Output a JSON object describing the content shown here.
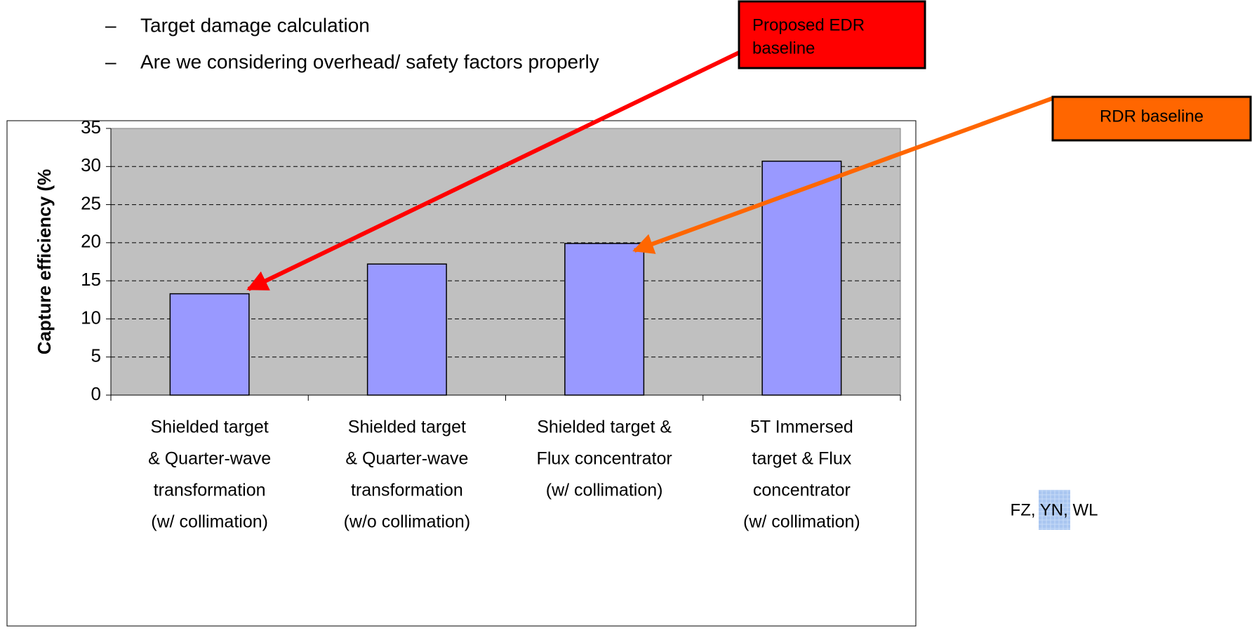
{
  "bullets": [
    "Target damage calculation",
    "Are we considering overhead/ safety factors properly"
  ],
  "chart_data": {
    "type": "bar",
    "ylabel": "Capture efficiency (%",
    "categories": [
      [
        "Shielded target",
        "& Quarter-wave",
        "transformation",
        "(w/ collimation)"
      ],
      [
        "Shielded target",
        "& Quarter-wave",
        "transformation",
        "(w/o collimation)"
      ],
      [
        "Shielded target &",
        "Flux concentrator",
        "(w/ collimation)"
      ],
      [
        "5T Immersed",
        "target & Flux",
        "concentrator",
        "(w/ collimation)"
      ]
    ],
    "values": [
      13.3,
      17.2,
      19.9,
      30.7
    ],
    "color": "#9999ff",
    "ylim": [
      0,
      35
    ],
    "yticks": [
      0,
      5,
      10,
      15,
      20,
      25,
      30,
      35
    ],
    "grid": true,
    "annotations": [
      "Proposed EDR baseline",
      "RDR baseline"
    ]
  },
  "credit": "FZ, YN, WL"
}
